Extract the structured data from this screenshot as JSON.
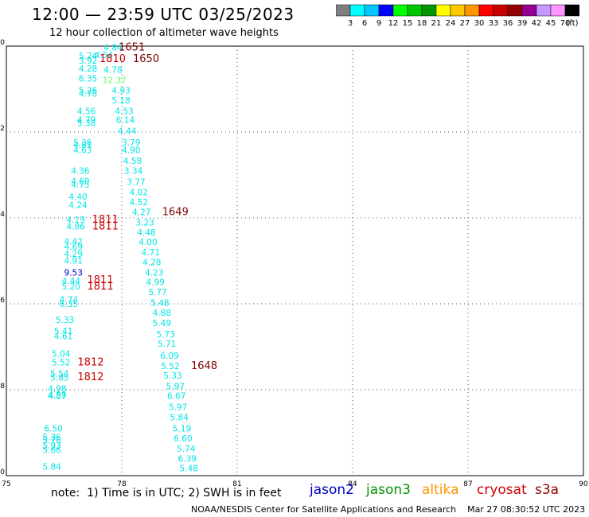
{
  "header": {
    "title": "12:00 — 23:59 UTC 03/25/2023",
    "subtitle": "12 hour collection of altimeter wave heights"
  },
  "legend": {
    "colors": [
      "#7f7f7f",
      "#00ffff",
      "#00c8ff",
      "#0000ff",
      "#00ff00",
      "#00c800",
      "#009600",
      "#ffff00",
      "#ffc800",
      "#ff9600",
      "#ff0000",
      "#c80000",
      "#960000",
      "#960096",
      "#c896ff",
      "#ff96ff",
      "#000000"
    ],
    "labels": [
      "3",
      "6",
      "9",
      "12",
      "15",
      "18",
      "21",
      "24",
      "27",
      "30",
      "33",
      "36",
      "39",
      "42",
      "45",
      "70",
      "(ft)"
    ]
  },
  "footer": {
    "note": "note:  1) Time is in UTC; 2) SWH is in feet",
    "satellites": [
      {
        "name": "jason2",
        "color": "#0000cc"
      },
      {
        "name": "jason3",
        "color": "#009600"
      },
      {
        "name": "altika",
        "color": "#ff9600"
      },
      {
        "name": "cryosat",
        "color": "#cc0000"
      },
      {
        "name": "s3a",
        "color": "#960000"
      }
    ],
    "credit": "NOAA/NESDIS Center for Satellite Applications and Research    Mar 27 08:30:52 UTC 2023"
  },
  "chart_data": {
    "type": "scatter",
    "xlim": [
      75,
      90
    ],
    "ylim": [
      -10,
      0
    ],
    "xticks": [
      "75",
      "78",
      "81",
      "84",
      "87",
      "90"
    ],
    "yticks": [
      "0",
      "-2",
      "-4",
      "-6",
      "-8",
      "-10"
    ],
    "grid": true,
    "points": [
      {
        "x": 77.53,
        "y": -0.03,
        "label": "4.84",
        "color": "#00e5e5"
      },
      {
        "x": 77.92,
        "y": -0.03,
        "label": "1651",
        "color": "#800000"
      },
      {
        "x": 76.88,
        "y": -0.22,
        "label": "5.24",
        "color": "#00e5e5"
      },
      {
        "x": 77.29,
        "y": -0.2,
        "label": "4.54",
        "color": "#00e5e5"
      },
      {
        "x": 77.42,
        "y": -0.3,
        "label": "1810",
        "color": "#cc0000"
      },
      {
        "x": 78.29,
        "y": -0.3,
        "label": "1650",
        "color": "#800000"
      },
      {
        "x": 76.88,
        "y": -0.33,
        "label": "3.92",
        "color": "#00e5e5"
      },
      {
        "x": 76.88,
        "y": -0.52,
        "label": "4.28",
        "color": "#00e5e5"
      },
      {
        "x": 77.53,
        "y": -0.55,
        "label": "4.78",
        "color": "#00e5e5"
      },
      {
        "x": 76.88,
        "y": -0.75,
        "label": "6.35",
        "color": "#00e5e5"
      },
      {
        "x": 77.5,
        "y": -0.79,
        "label": "12.37",
        "color": "#66ff66"
      },
      {
        "x": 76.88,
        "y": -1.03,
        "label": "5.26",
        "color": "#00e5e5"
      },
      {
        "x": 77.74,
        "y": -1.03,
        "label": "4.93",
        "color": "#00e5e5"
      },
      {
        "x": 76.88,
        "y": -1.1,
        "label": "4.78",
        "color": "#00e5e5"
      },
      {
        "x": 77.74,
        "y": -1.26,
        "label": "5.18",
        "color": "#00e5e5"
      },
      {
        "x": 76.84,
        "y": -1.51,
        "label": "4.56",
        "color": "#00e5e5"
      },
      {
        "x": 77.82,
        "y": -1.51,
        "label": "4.53",
        "color": "#00e5e5"
      },
      {
        "x": 76.84,
        "y": -1.71,
        "label": "4.79",
        "color": "#00e5e5"
      },
      {
        "x": 77.85,
        "y": -1.71,
        "label": "6.14",
        "color": "#00e5e5"
      },
      {
        "x": 76.84,
        "y": -1.79,
        "label": "5.38",
        "color": "#00e5e5"
      },
      {
        "x": 77.9,
        "y": -1.97,
        "label": "4.44",
        "color": "#00e5e5"
      },
      {
        "x": 76.74,
        "y": -2.24,
        "label": "5.36",
        "color": "#00e5e5"
      },
      {
        "x": 78.0,
        "y": -2.24,
        "label": "3.79",
        "color": "#00e5e5"
      },
      {
        "x": 76.74,
        "y": -2.3,
        "label": "4.81",
        "color": "#00e5e5"
      },
      {
        "x": 76.74,
        "y": -2.42,
        "label": "4.63",
        "color": "#00e5e5"
      },
      {
        "x": 78.0,
        "y": -2.42,
        "label": "4.90",
        "color": "#00e5e5"
      },
      {
        "x": 78.04,
        "y": -2.67,
        "label": "4.58",
        "color": "#00e5e5"
      },
      {
        "x": 76.68,
        "y": -2.9,
        "label": "4.36",
        "color": "#00e5e5"
      },
      {
        "x": 78.06,
        "y": -2.9,
        "label": "3.34",
        "color": "#00e5e5"
      },
      {
        "x": 76.68,
        "y": -3.14,
        "label": "4.69",
        "color": "#00e5e5"
      },
      {
        "x": 78.13,
        "y": -3.16,
        "label": "3.77",
        "color": "#00e5e5"
      },
      {
        "x": 76.68,
        "y": -3.22,
        "label": "4.75",
        "color": "#00e5e5"
      },
      {
        "x": 78.2,
        "y": -3.4,
        "label": "4.02",
        "color": "#00e5e5"
      },
      {
        "x": 76.62,
        "y": -3.5,
        "label": "4.40",
        "color": "#00e5e5"
      },
      {
        "x": 78.2,
        "y": -3.63,
        "label": "4.52",
        "color": "#00e5e5"
      },
      {
        "x": 76.62,
        "y": -3.69,
        "label": "4.24",
        "color": "#00e5e5"
      },
      {
        "x": 78.27,
        "y": -3.86,
        "label": "4.27",
        "color": "#00e5e5"
      },
      {
        "x": 79.05,
        "y": -3.86,
        "label": "1649",
        "color": "#800000"
      },
      {
        "x": 76.56,
        "y": -4.04,
        "label": "4.19",
        "color": "#00e5e5"
      },
      {
        "x": 77.23,
        "y": -4.04,
        "label": "1811",
        "color": "#cc0000"
      },
      {
        "x": 78.36,
        "y": -4.1,
        "label": "3.23",
        "color": "#00e5e5"
      },
      {
        "x": 76.56,
        "y": -4.19,
        "label": "4.86",
        "color": "#00e5e5"
      },
      {
        "x": 77.23,
        "y": -4.19,
        "label": "1811",
        "color": "#cc0000"
      },
      {
        "x": 78.4,
        "y": -4.33,
        "label": "4.48",
        "color": "#00e5e5"
      },
      {
        "x": 76.5,
        "y": -4.55,
        "label": "4.42",
        "color": "#00e5e5"
      },
      {
        "x": 78.44,
        "y": -4.56,
        "label": "4.00",
        "color": "#00e5e5"
      },
      {
        "x": 76.5,
        "y": -4.67,
        "label": "4.69",
        "color": "#00e5e5"
      },
      {
        "x": 76.5,
        "y": -4.83,
        "label": "4.29",
        "color": "#00e5e5"
      },
      {
        "x": 78.51,
        "y": -4.8,
        "label": "4.71",
        "color": "#00e5e5"
      },
      {
        "x": 76.5,
        "y": -4.99,
        "label": "4.91",
        "color": "#00e5e5"
      },
      {
        "x": 78.54,
        "y": -5.03,
        "label": "4.28",
        "color": "#00e5e5"
      },
      {
        "x": 76.5,
        "y": -5.27,
        "label": "9.53",
        "color": "#0000cc"
      },
      {
        "x": 78.6,
        "y": -5.27,
        "label": "4.23",
        "color": "#00e5e5"
      },
      {
        "x": 76.44,
        "y": -5.46,
        "label": "4.44",
        "color": "#00e5e5"
      },
      {
        "x": 77.1,
        "y": -5.44,
        "label": "1811",
        "color": "#cc0000"
      },
      {
        "x": 78.63,
        "y": -5.49,
        "label": "4.99",
        "color": "#00e5e5"
      },
      {
        "x": 76.44,
        "y": -5.59,
        "label": "5.20",
        "color": "#00e5e5"
      },
      {
        "x": 77.1,
        "y": -5.59,
        "label": "1811",
        "color": "#cc0000"
      },
      {
        "x": 78.69,
        "y": -5.72,
        "label": "5.77",
        "color": "#00e5e5"
      },
      {
        "x": 76.38,
        "y": -5.9,
        "label": "4.74",
        "color": "#00e5e5"
      },
      {
        "x": 76.38,
        "y": -6.0,
        "label": "6.35",
        "color": "#00e5e5"
      },
      {
        "x": 78.75,
        "y": -5.97,
        "label": "5.48",
        "color": "#00e5e5"
      },
      {
        "x": 78.8,
        "y": -6.2,
        "label": "4.88",
        "color": "#00e5e5"
      },
      {
        "x": 76.28,
        "y": -6.37,
        "label": "5.33",
        "color": "#00e5e5"
      },
      {
        "x": 78.8,
        "y": -6.44,
        "label": "5.49",
        "color": "#00e5e5"
      },
      {
        "x": 76.24,
        "y": -6.63,
        "label": "5.41",
        "color": "#00e5e5"
      },
      {
        "x": 76.24,
        "y": -6.75,
        "label": "4.61",
        "color": "#00e5e5"
      },
      {
        "x": 78.9,
        "y": -6.7,
        "label": "5.73",
        "color": "#00e5e5"
      },
      {
        "x": 78.93,
        "y": -6.93,
        "label": "5.71",
        "color": "#00e5e5"
      },
      {
        "x": 76.18,
        "y": -7.16,
        "label": "5.04",
        "color": "#00e5e5"
      },
      {
        "x": 79.0,
        "y": -7.2,
        "label": "6.09",
        "color": "#00e5e5"
      },
      {
        "x": 76.18,
        "y": -7.36,
        "label": "5.52",
        "color": "#00e5e5"
      },
      {
        "x": 76.85,
        "y": -7.36,
        "label": "1812",
        "color": "#cc0000"
      },
      {
        "x": 79.02,
        "y": -7.44,
        "label": "5.52",
        "color": "#00e5e5"
      },
      {
        "x": 79.8,
        "y": -7.44,
        "label": "1648",
        "color": "#800000"
      },
      {
        "x": 76.14,
        "y": -7.62,
        "label": "5.54",
        "color": "#00e5e5"
      },
      {
        "x": 76.85,
        "y": -7.7,
        "label": "1812",
        "color": "#cc0000"
      },
      {
        "x": 76.14,
        "y": -7.71,
        "label": "5.85",
        "color": "#00e5e5"
      },
      {
        "x": 79.08,
        "y": -7.67,
        "label": "5.33",
        "color": "#00e5e5"
      },
      {
        "x": 76.08,
        "y": -7.97,
        "label": "4.98",
        "color": "#00e5e5"
      },
      {
        "x": 79.15,
        "y": -7.92,
        "label": "5.97",
        "color": "#00e5e5"
      },
      {
        "x": 76.08,
        "y": -8.12,
        "label": "4.89",
        "color": "#00e5e5"
      },
      {
        "x": 76.08,
        "y": -8.14,
        "label": "4.57",
        "color": "#00e5e5"
      },
      {
        "x": 79.18,
        "y": -8.14,
        "label": "6.67",
        "color": "#00e5e5"
      },
      {
        "x": 79.22,
        "y": -8.4,
        "label": "5.97",
        "color": "#00e5e5"
      },
      {
        "x": 79.25,
        "y": -8.64,
        "label": "5.84",
        "color": "#00e5e5"
      },
      {
        "x": 75.98,
        "y": -8.9,
        "label": "6.50",
        "color": "#00e5e5"
      },
      {
        "x": 79.32,
        "y": -8.9,
        "label": "5.19",
        "color": "#00e5e5"
      },
      {
        "x": 75.94,
        "y": -9.1,
        "label": "5.36",
        "color": "#00e5e5"
      },
      {
        "x": 75.94,
        "y": -9.18,
        "label": "5.76",
        "color": "#00e5e5"
      },
      {
        "x": 79.35,
        "y": -9.13,
        "label": "6.60",
        "color": "#00e5e5"
      },
      {
        "x": 75.94,
        "y": -9.3,
        "label": "5.93",
        "color": "#00e5e5"
      },
      {
        "x": 75.94,
        "y": -9.4,
        "label": "5.66",
        "color": "#00e5e5"
      },
      {
        "x": 79.43,
        "y": -9.37,
        "label": "5.74",
        "color": "#00e5e5"
      },
      {
        "x": 79.46,
        "y": -9.6,
        "label": "6.39",
        "color": "#00e5e5"
      },
      {
        "x": 75.94,
        "y": -9.79,
        "label": "5.84",
        "color": "#00e5e5"
      },
      {
        "x": 79.5,
        "y": -9.82,
        "label": "5.48",
        "color": "#00e5e5"
      }
    ]
  }
}
